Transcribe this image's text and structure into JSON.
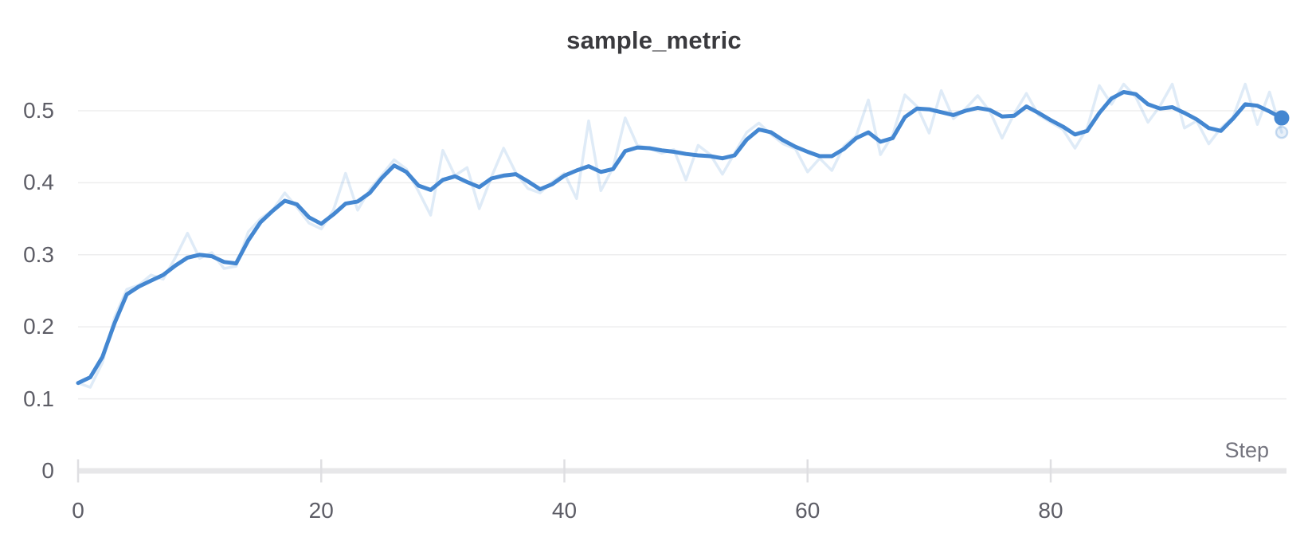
{
  "chart_data": {
    "type": "line",
    "title": "sample_metric",
    "xlabel": "Step",
    "ylabel": "",
    "xlim": [
      0,
      99
    ],
    "ylim": [
      0,
      0.55
    ],
    "grid": "horizontal",
    "legend_position": "none",
    "xticks": [
      0,
      20,
      40,
      60,
      80
    ],
    "xtick_labels": [
      "0",
      "20",
      "40",
      "60",
      "80"
    ],
    "yticks": [
      0,
      0.1,
      0.2,
      0.3,
      0.4,
      0.5
    ],
    "ytick_labels": [
      "0",
      "0.1",
      "0.2",
      "0.3",
      "0.4",
      "0.5"
    ],
    "x": [
      0,
      1,
      2,
      3,
      4,
      5,
      6,
      7,
      8,
      9,
      10,
      11,
      12,
      13,
      14,
      15,
      16,
      17,
      18,
      19,
      20,
      21,
      22,
      23,
      24,
      25,
      26,
      27,
      28,
      29,
      30,
      31,
      32,
      33,
      34,
      35,
      36,
      37,
      38,
      39,
      40,
      41,
      42,
      43,
      44,
      45,
      46,
      47,
      48,
      49,
      50,
      51,
      52,
      53,
      54,
      55,
      56,
      57,
      58,
      59,
      60,
      61,
      62,
      63,
      64,
      65,
      66,
      67,
      68,
      69,
      70,
      71,
      72,
      73,
      74,
      75,
      76,
      77,
      78,
      79,
      80,
      81,
      82,
      83,
      84,
      85,
      86,
      87,
      88,
      89,
      90,
      91,
      92,
      93,
      94,
      95,
      96,
      97,
      98,
      99
    ],
    "series": [
      {
        "name": "raw",
        "role": "original-unsmoothed",
        "opacity": 0.17,
        "stroke_width": 3.5,
        "values": [
          0.122,
          0.116,
          0.15,
          0.213,
          0.252,
          0.258,
          0.272,
          0.266,
          0.296,
          0.33,
          0.295,
          0.303,
          0.281,
          0.284,
          0.332,
          0.35,
          0.362,
          0.386,
          0.366,
          0.344,
          0.336,
          0.362,
          0.413,
          0.362,
          0.391,
          0.411,
          0.432,
          0.419,
          0.388,
          0.355,
          0.445,
          0.41,
          0.421,
          0.364,
          0.408,
          0.448,
          0.414,
          0.392,
          0.386,
          0.401,
          0.413,
          0.378,
          0.486,
          0.389,
          0.421,
          0.49,
          0.452,
          0.448,
          0.441,
          0.446,
          0.404,
          0.452,
          0.439,
          0.412,
          0.441,
          0.47,
          0.483,
          0.467,
          0.454,
          0.447,
          0.415,
          0.434,
          0.417,
          0.451,
          0.465,
          0.515,
          0.439,
          0.466,
          0.522,
          0.506,
          0.469,
          0.528,
          0.489,
          0.503,
          0.521,
          0.499,
          0.462,
          0.496,
          0.524,
          0.494,
          0.484,
          0.474,
          0.448,
          0.476,
          0.535,
          0.509,
          0.537,
          0.519,
          0.484,
          0.507,
          0.537,
          0.476,
          0.486,
          0.454,
          0.476,
          0.491,
          0.537,
          0.481,
          0.526,
          0.47
        ]
      },
      {
        "name": "smoothed",
        "role": "smoothed-line",
        "opacity": 1,
        "stroke_width": 5,
        "end_dot": true,
        "values": [
          0.122,
          0.13,
          0.158,
          0.205,
          0.245,
          0.256,
          0.264,
          0.272,
          0.285,
          0.296,
          0.3,
          0.298,
          0.29,
          0.288,
          0.32,
          0.345,
          0.361,
          0.375,
          0.37,
          0.352,
          0.343,
          0.356,
          0.371,
          0.374,
          0.386,
          0.407,
          0.424,
          0.415,
          0.396,
          0.39,
          0.404,
          0.409,
          0.401,
          0.394,
          0.406,
          0.41,
          0.412,
          0.402,
          0.391,
          0.398,
          0.41,
          0.417,
          0.423,
          0.415,
          0.419,
          0.444,
          0.449,
          0.448,
          0.445,
          0.443,
          0.44,
          0.438,
          0.437,
          0.434,
          0.438,
          0.46,
          0.474,
          0.47,
          0.459,
          0.45,
          0.443,
          0.437,
          0.437,
          0.447,
          0.462,
          0.47,
          0.457,
          0.462,
          0.491,
          0.503,
          0.502,
          0.498,
          0.494,
          0.5,
          0.504,
          0.501,
          0.492,
          0.493,
          0.506,
          0.497,
          0.487,
          0.478,
          0.467,
          0.472,
          0.497,
          0.517,
          0.526,
          0.523,
          0.509,
          0.503,
          0.505,
          0.497,
          0.488,
          0.476,
          0.472,
          0.489,
          0.509,
          0.507,
          0.499,
          0.49
        ]
      }
    ],
    "colors": {
      "line": "#4487d1",
      "grid": "#ededee",
      "axis_band": "#e7e7e9",
      "tick_mark": "#dfdfe2",
      "title_text": "#3a3a3e",
      "tick_text": "#5d5d66",
      "axis_title_text": "#74747e",
      "background": "#ffffff"
    }
  }
}
